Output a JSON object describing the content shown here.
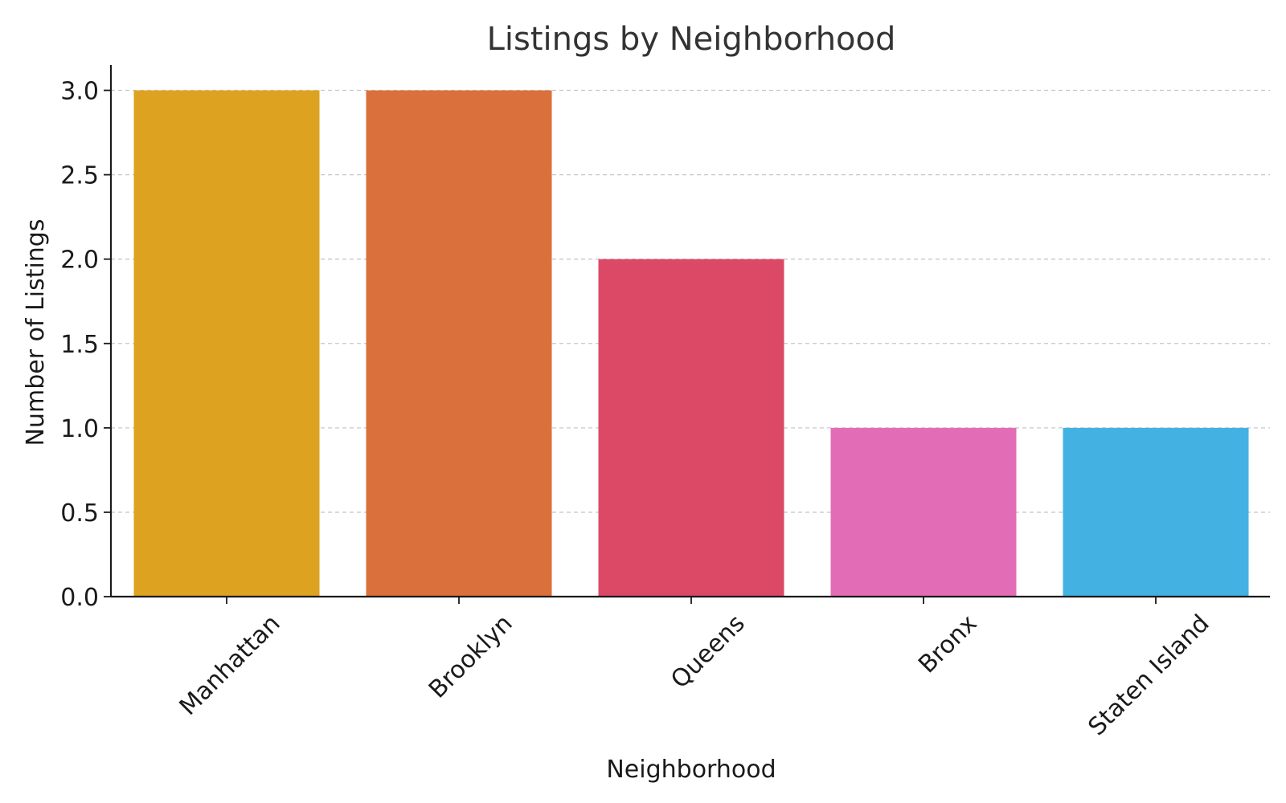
{
  "chart_data": {
    "type": "bar",
    "title": "Listings by Neighborhood",
    "xlabel": "Neighborhood",
    "ylabel": "Number of Listings",
    "categories": [
      "Manhattan",
      "Brooklyn",
      "Queens",
      "Bronx",
      "Staten Island"
    ],
    "values": [
      3,
      3,
      2,
      1,
      1
    ],
    "colors": [
      "#dea221",
      "#da703b",
      "#db4966",
      "#e36cb6",
      "#43b1e1"
    ],
    "ylim": [
      0,
      3.15
    ],
    "yticks": [
      0.0,
      0.5,
      1.0,
      1.5,
      2.0,
      2.5,
      3.0
    ],
    "ytick_labels": [
      "0.0",
      "0.5",
      "1.0",
      "1.5",
      "2.0",
      "2.5",
      "3.0"
    ],
    "grid": "y-dashed",
    "legend": "none"
  }
}
